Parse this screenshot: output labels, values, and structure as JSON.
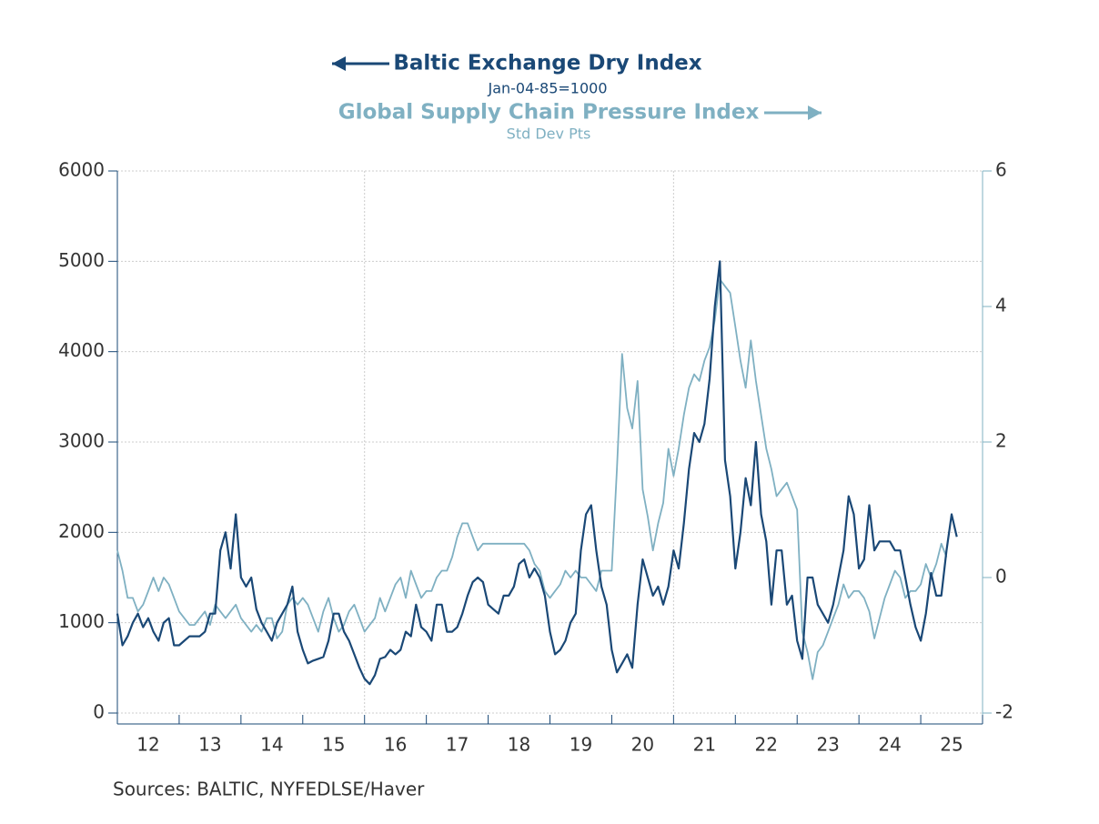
{
  "chart_data": {
    "type": "line",
    "series": [
      {
        "name": "Baltic Exchange Dry Index",
        "unit": "Jan-04-85=1000",
        "color": "#1a4876",
        "axis": "y",
        "values": [
          1100,
          750,
          850,
          1000,
          1100,
          950,
          1050,
          900,
          800,
          1000,
          1050,
          750,
          750,
          800,
          850,
          850,
          850,
          900,
          1100,
          1100,
          1800,
          2000,
          1600,
          2200,
          1500,
          1400,
          1500,
          1150,
          1000,
          900,
          800,
          1000,
          1100,
          1200,
          1400,
          900,
          700,
          550,
          580,
          600,
          620,
          800,
          1100,
          1100,
          900,
          800,
          650,
          500,
          380,
          320,
          420,
          600,
          620,
          700,
          650,
          700,
          900,
          850,
          1200,
          950,
          900,
          800,
          1200,
          1200,
          900,
          900,
          950,
          1100,
          1300,
          1450,
          1500,
          1450,
          1200,
          1150,
          1100,
          1300,
          1300,
          1400,
          1650,
          1700,
          1500,
          1600,
          1500,
          1300,
          900,
          650,
          700,
          800,
          1000,
          1100,
          1800,
          2200,
          2300,
          1800,
          1400,
          1200,
          700,
          450,
          550,
          650,
          500,
          1200,
          1700,
          1500,
          1300,
          1400,
          1200,
          1400,
          1800,
          1600,
          2100,
          2700,
          3100,
          3000,
          3200,
          3700,
          4500,
          5000,
          2800,
          2400,
          1600,
          2000,
          2600,
          2300,
          3000,
          2200,
          1900,
          1200,
          1800,
          1800,
          1200,
          1300,
          800,
          600,
          1500,
          1500,
          1200,
          1100,
          1000,
          1200,
          1500,
          1800,
          2400,
          2200,
          1600,
          1700,
          2300,
          1800,
          1900,
          1900,
          1900,
          1800,
          1800,
          1500,
          1200,
          950,
          800,
          1100,
          1550,
          1300,
          1300,
          1800,
          2200,
          1950
        ]
      },
      {
        "name": "Global Supply Chain Pressure Index",
        "unit": "Std Dev Pts",
        "color": "#7fb0c2",
        "axis": "y2",
        "values": [
          0.4,
          0.1,
          -0.3,
          -0.3,
          -0.5,
          -0.4,
          -0.2,
          0.0,
          -0.2,
          0.0,
          -0.1,
          -0.3,
          -0.5,
          -0.6,
          -0.7,
          -0.7,
          -0.6,
          -0.5,
          -0.7,
          -0.4,
          -0.5,
          -0.6,
          -0.5,
          -0.4,
          -0.6,
          -0.7,
          -0.8,
          -0.7,
          -0.8,
          -0.6,
          -0.6,
          -0.9,
          -0.8,
          -0.4,
          -0.3,
          -0.4,
          -0.3,
          -0.4,
          -0.6,
          -0.8,
          -0.5,
          -0.3,
          -0.6,
          -0.8,
          -0.7,
          -0.5,
          -0.4,
          -0.6,
          -0.8,
          -0.7,
          -0.6,
          -0.3,
          -0.5,
          -0.3,
          -0.1,
          0.0,
          -0.3,
          0.1,
          -0.1,
          -0.3,
          -0.2,
          -0.2,
          0.0,
          0.1,
          0.1,
          0.3,
          0.6,
          0.8,
          0.8,
          0.6,
          0.4,
          0.5,
          0.5,
          0.5,
          0.5,
          0.5,
          0.5,
          0.5,
          0.5,
          0.5,
          0.4,
          0.2,
          0.1,
          -0.2,
          -0.3,
          -0.2,
          -0.1,
          0.1,
          0.0,
          0.1,
          0.0,
          0.0,
          -0.1,
          -0.2,
          0.1,
          0.1,
          0.1,
          1.6,
          3.3,
          2.5,
          2.2,
          2.9,
          1.3,
          0.9,
          0.4,
          0.8,
          1.1,
          1.9,
          1.5,
          1.9,
          2.4,
          2.8,
          3.0,
          2.9,
          3.2,
          3.4,
          3.8,
          4.4,
          4.3,
          4.2,
          3.7,
          3.2,
          2.8,
          3.5,
          2.9,
          2.4,
          1.9,
          1.6,
          1.2,
          1.3,
          1.4,
          1.2,
          1.0,
          -0.8,
          -1.1,
          -1.5,
          -1.1,
          -1.0,
          -0.8,
          -0.6,
          -0.4,
          -0.1,
          -0.3,
          -0.2,
          -0.2,
          -0.3,
          -0.5,
          -0.9,
          -0.6,
          -0.3,
          -0.1,
          0.1,
          0.0,
          -0.3,
          -0.2,
          -0.2,
          -0.1,
          0.2,
          0.0,
          0.2,
          0.5,
          0.3,
          null,
          null
        ]
      }
    ],
    "x": [
      2012,
      2012.083,
      2012.167,
      2012.25,
      2012.333,
      2012.417,
      2012.5,
      2012.583,
      2012.667,
      2012.75,
      2012.833,
      2012.917,
      2013,
      2013.083,
      2013.167,
      2013.25,
      2013.333,
      2013.417,
      2013.5,
      2013.583,
      2013.667,
      2013.75,
      2013.833,
      2013.917,
      2014,
      2014.083,
      2014.167,
      2014.25,
      2014.333,
      2014.417,
      2014.5,
      2014.583,
      2014.667,
      2014.75,
      2014.833,
      2014.917,
      2015,
      2015.083,
      2015.167,
      2015.25,
      2015.333,
      2015.417,
      2015.5,
      2015.583,
      2015.667,
      2015.75,
      2015.833,
      2015.917,
      2016,
      2016.083,
      2016.167,
      2016.25,
      2016.333,
      2016.417,
      2016.5,
      2016.583,
      2016.667,
      2016.75,
      2016.833,
      2016.917,
      2017,
      2017.083,
      2017.167,
      2017.25,
      2017.333,
      2017.417,
      2017.5,
      2017.583,
      2017.667,
      2017.75,
      2017.833,
      2017.917,
      2018,
      2018.083,
      2018.167,
      2018.25,
      2018.333,
      2018.417,
      2018.5,
      2018.583,
      2018.667,
      2018.75,
      2018.833,
      2018.917,
      2019,
      2019.083,
      2019.167,
      2019.25,
      2019.333,
      2019.417,
      2019.5,
      2019.583,
      2019.667,
      2019.75,
      2019.833,
      2019.917,
      2020,
      2020.083,
      2020.167,
      2020.25,
      2020.333,
      2020.417,
      2020.5,
      2020.583,
      2020.667,
      2020.75,
      2020.833,
      2020.917,
      2021,
      2021.083,
      2021.167,
      2021.25,
      2021.333,
      2021.417,
      2021.5,
      2021.583,
      2021.667,
      2021.75,
      2021.833,
      2021.917,
      2022,
      2022.083,
      2022.167,
      2022.25,
      2022.333,
      2022.417,
      2022.5,
      2022.583,
      2022.667,
      2022.75,
      2022.833,
      2022.917,
      2023,
      2023.083,
      2023.167,
      2023.25,
      2023.333,
      2023.417,
      2023.5,
      2023.583,
      2023.667,
      2023.75,
      2023.833,
      2023.917,
      2024,
      2024.083,
      2024.167,
      2024.25,
      2024.333,
      2024.417,
      2024.5,
      2024.583,
      2024.667,
      2024.75,
      2024.833,
      2024.917,
      2025,
      2025.083,
      2025.167,
      2025.25,
      2025.333,
      2025.417,
      2025.5,
      2025.583
    ],
    "xlim": [
      2012,
      2026
    ],
    "xticks": [
      2012,
      2013,
      2014,
      2015,
      2016,
      2017,
      2018,
      2019,
      2020,
      2021,
      2022,
      2023,
      2024,
      2025,
      2026
    ],
    "xtick_labels": [
      {
        "value": 2012.5,
        "label": "12"
      },
      {
        "value": 2013.5,
        "label": "13"
      },
      {
        "value": 2014.5,
        "label": "14"
      },
      {
        "value": 2015.5,
        "label": "15"
      },
      {
        "value": 2016.5,
        "label": "16"
      },
      {
        "value": 2017.5,
        "label": "17"
      },
      {
        "value": 2018.5,
        "label": "18"
      },
      {
        "value": 2019.5,
        "label": "19"
      },
      {
        "value": 2020.5,
        "label": "20"
      },
      {
        "value": 2021.5,
        "label": "21"
      },
      {
        "value": 2022.5,
        "label": "22"
      },
      {
        "value": 2023.5,
        "label": "23"
      },
      {
        "value": 2024.5,
        "label": "24"
      },
      {
        "value": 2025.5,
        "label": "25"
      }
    ],
    "xgrid": [
      2016,
      2021
    ],
    "ylim": [
      0,
      6000
    ],
    "yticks": [
      0,
      1000,
      2000,
      3000,
      4000,
      5000,
      6000
    ],
    "y2lim": [
      -2,
      6
    ],
    "y2ticks": [
      -2,
      0,
      2,
      4,
      6
    ],
    "grid": true,
    "source": "Sources:  BALTIC, NYFEDLSE/Haver"
  }
}
